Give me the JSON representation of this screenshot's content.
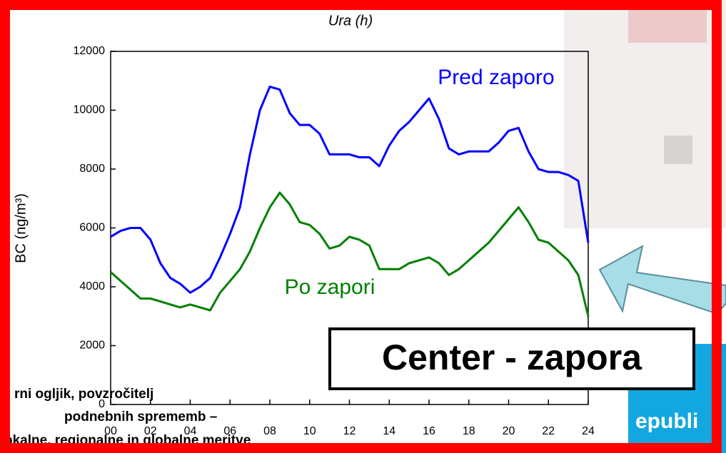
{
  "chart_data": {
    "type": "line",
    "title": "Ura (h)",
    "y_label": "BC (ng/m³)",
    "x": [
      0,
      0.5,
      1,
      1.5,
      2,
      2.5,
      3,
      3.5,
      4,
      4.5,
      5,
      5.5,
      6,
      6.5,
      7,
      7.5,
      8,
      8.5,
      9,
      9.5,
      10,
      10.5,
      11,
      11.5,
      12,
      12.5,
      13,
      13.5,
      14,
      14.5,
      15,
      15.5,
      16,
      16.5,
      17,
      17.5,
      18,
      18.5,
      19,
      19.5,
      20,
      20.5,
      21,
      21.5,
      22,
      22.5,
      23,
      23.5,
      24
    ],
    "series": [
      {
        "name": "Pred zaporo",
        "color": "#0000ff",
        "values": [
          5700,
          5900,
          6000,
          6000,
          5600,
          4800,
          4300,
          4100,
          3800,
          4000,
          4300,
          5000,
          5800,
          6700,
          8500,
          10000,
          10800,
          10700,
          9900,
          9500,
          9500,
          9200,
          8500,
          8500,
          8500,
          8400,
          8400,
          8100,
          8800,
          9300,
          9600,
          10000,
          10400,
          9700,
          8700,
          8500,
          8600,
          8600,
          8600,
          8900,
          9300,
          9400,
          8600,
          8000,
          7900,
          7900,
          7800,
          7600,
          5500
        ]
      },
      {
        "name": "Po zapori",
        "color": "#008000",
        "values": [
          4500,
          4200,
          3900,
          3600,
          3600,
          3500,
          3400,
          3300,
          3400,
          3300,
          3200,
          3800,
          4200,
          4600,
          5200,
          6000,
          6700,
          7200,
          6800,
          6200,
          6100,
          5800,
          5300,
          5400,
          5700,
          5600,
          5400,
          4600,
          4600,
          4600,
          4800,
          4900,
          5000,
          4800,
          4400,
          4600,
          4900,
          5200,
          5500,
          5900,
          6300,
          6700,
          6200,
          5600,
          5500,
          5200,
          4900,
          4400,
          3000
        ]
      }
    ],
    "xlim": [
      0,
      24
    ],
    "xticks": [
      {
        "value": 0,
        "label": "00"
      },
      {
        "value": 2,
        "label": "02"
      },
      {
        "value": 4,
        "label": "04"
      },
      {
        "value": 6,
        "label": "06"
      },
      {
        "value": 8,
        "label": "08"
      },
      10,
      12,
      14,
      16,
      18,
      20,
      22,
      24
    ],
    "ylim": [
      0,
      12000
    ],
    "yticks": [
      0,
      2000,
      4000,
      6000,
      8000,
      10000,
      12000
    ],
    "callout": "Center - zapora",
    "footer_lines": [
      "rni ogljik, povzročitelj",
      "podnebnih sprememb –",
      "okalne, regionalne in globalne meritve"
    ],
    "logo": "epubli"
  }
}
